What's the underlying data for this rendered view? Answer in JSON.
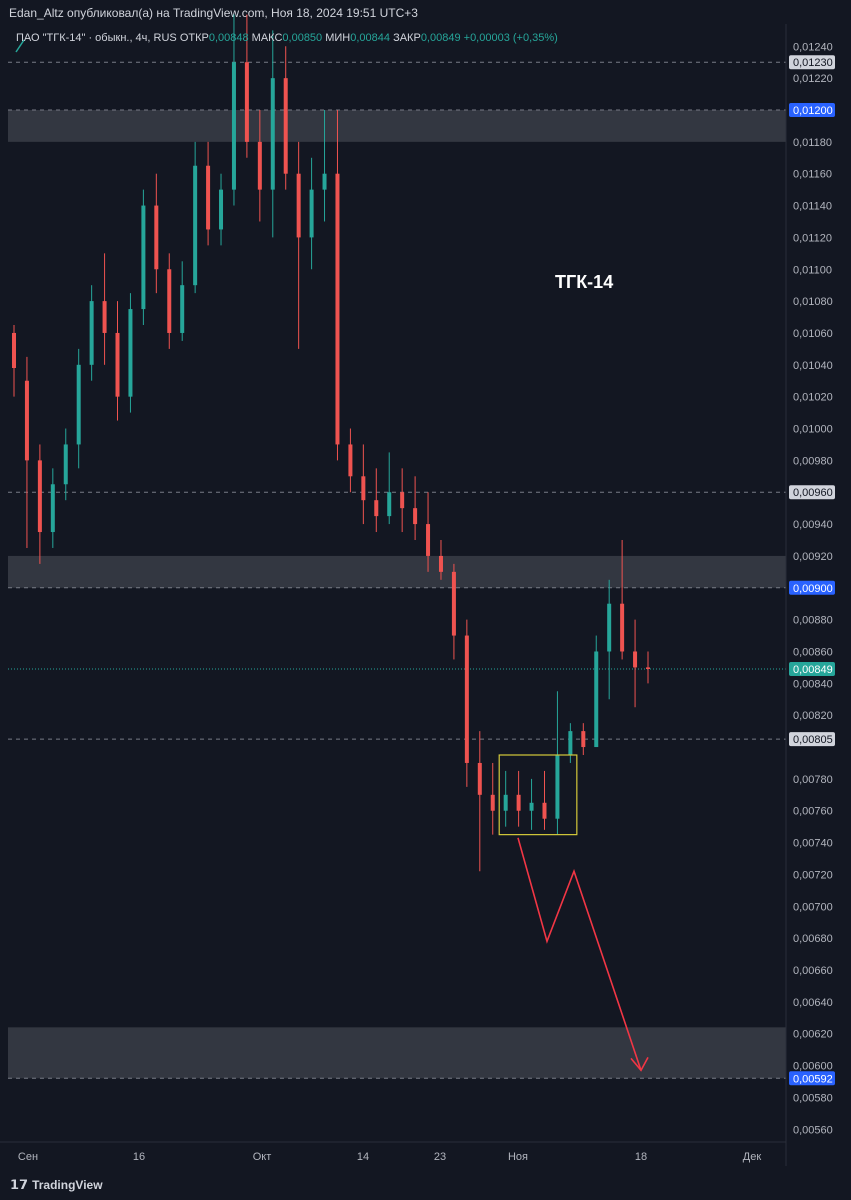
{
  "header": {
    "publish_line": "Edan_Altz опубликовал(а) на TradingView.com, Ноя 18, 2024 19:51 UTC+3"
  },
  "legend": {
    "symbol": "ПАО \"ТГК-14\" · обыкн., 4ч, RUS",
    "open_label": "ОТКР",
    "open_value": "0,00848",
    "high_label": "МАКС",
    "high_value": "0,00850",
    "low_label": "МИН",
    "low_value": "0,00844",
    "close_label": "ЗАКР",
    "close_value": "0,00849",
    "change": "+0,00003 (+0,35%)"
  },
  "footer": {
    "brand": "TradingView",
    "brand_icon": "tradingview-logo-icon"
  },
  "colors": {
    "background": "#131722",
    "up": "#26a69a",
    "down": "#ef5350",
    "zone": "#3a3d47",
    "box": "#d4c93a",
    "arrow": "#f23645",
    "badge_blue": "#2962ff"
  },
  "chart_data": {
    "type": "candlestick",
    "title": "ТГК-14",
    "ylim": [
      0.00552,
      0.01254
    ],
    "y_ticks": [
      "0,01240",
      "0,01220",
      "0,01180",
      "0,01160",
      "0,01140",
      "0,01120",
      "0,01100",
      "0,01080",
      "0,01060",
      "0,01040",
      "0,01020",
      "0,01000",
      "0,00980",
      "0,00940",
      "0,00920",
      "0,00880",
      "0,00860",
      "0,00840",
      "0,00820",
      "0,00780",
      "0,00760",
      "0,00740",
      "0,00720",
      "0,00700",
      "0,00680",
      "0,00660",
      "0,00640",
      "0,00620",
      "0,00600",
      "0,00580",
      "0,00560"
    ],
    "x_labels": [
      "Сен",
      "16",
      "Окт",
      "14",
      "23",
      "Ноя",
      "18",
      "Дек"
    ],
    "price_badges": [
      {
        "label": "0,01230",
        "value": 0.0123,
        "style": "gray"
      },
      {
        "label": "0,01200",
        "value": 0.012,
        "style": "blue"
      },
      {
        "label": "0,00960",
        "value": 0.0096,
        "style": "gray"
      },
      {
        "label": "0,00900",
        "value": 0.009,
        "style": "blue"
      },
      {
        "label": "0,00849",
        "value": 0.00849,
        "style": "green"
      },
      {
        "label": "0,00805",
        "value": 0.00805,
        "style": "gray"
      },
      {
        "label": "0,00592",
        "value": 0.00592,
        "style": "blue"
      }
    ],
    "zones": [
      {
        "from": 0.0118,
        "to": 0.012
      },
      {
        "from": 0.009,
        "to": 0.0092
      },
      {
        "from": 0.00592,
        "to": 0.00624
      }
    ],
    "consolidation_box": {
      "from": 0.00745,
      "to": 0.00795
    },
    "forecast_path": [
      0.00743,
      0.00678,
      0.00722,
      0.00597
    ],
    "candles": [
      {
        "o": 0.0106,
        "h": 0.01065,
        "c": 0.01038,
        "l": 0.0102
      },
      {
        "o": 0.0103,
        "h": 0.01045,
        "c": 0.0098,
        "l": 0.00925
      },
      {
        "o": 0.0098,
        "h": 0.0099,
        "c": 0.00935,
        "l": 0.00915
      },
      {
        "o": 0.00935,
        "h": 0.00975,
        "c": 0.00965,
        "l": 0.00925
      },
      {
        "o": 0.00965,
        "h": 0.01,
        "c": 0.0099,
        "l": 0.00955
      },
      {
        "o": 0.0099,
        "h": 0.0105,
        "c": 0.0104,
        "l": 0.00975
      },
      {
        "o": 0.0104,
        "h": 0.0109,
        "c": 0.0108,
        "l": 0.0103
      },
      {
        "o": 0.0108,
        "h": 0.0111,
        "c": 0.0106,
        "l": 0.0104
      },
      {
        "o": 0.0106,
        "h": 0.0108,
        "c": 0.0102,
        "l": 0.01005
      },
      {
        "o": 0.0102,
        "h": 0.01085,
        "c": 0.01075,
        "l": 0.0101
      },
      {
        "o": 0.01075,
        "h": 0.0115,
        "c": 0.0114,
        "l": 0.01065
      },
      {
        "o": 0.0114,
        "h": 0.0116,
        "c": 0.011,
        "l": 0.01085
      },
      {
        "o": 0.011,
        "h": 0.0111,
        "c": 0.0106,
        "l": 0.0105
      },
      {
        "o": 0.0106,
        "h": 0.01105,
        "c": 0.0109,
        "l": 0.01055
      },
      {
        "o": 0.0109,
        "h": 0.0118,
        "c": 0.01165,
        "l": 0.01085
      },
      {
        "o": 0.01165,
        "h": 0.0118,
        "c": 0.01125,
        "l": 0.01115
      },
      {
        "o": 0.01125,
        "h": 0.0116,
        "c": 0.0115,
        "l": 0.01115
      },
      {
        "o": 0.0115,
        "h": 0.0126,
        "c": 0.0123,
        "l": 0.0114
      },
      {
        "o": 0.0123,
        "h": 0.0126,
        "c": 0.0118,
        "l": 0.0117
      },
      {
        "o": 0.0118,
        "h": 0.012,
        "c": 0.0115,
        "l": 0.0113
      },
      {
        "o": 0.0115,
        "h": 0.0125,
        "c": 0.0122,
        "l": 0.0112
      },
      {
        "o": 0.0122,
        "h": 0.0124,
        "c": 0.0116,
        "l": 0.0115
      },
      {
        "o": 0.0116,
        "h": 0.0118,
        "c": 0.0112,
        "l": 0.0105
      },
      {
        "o": 0.0112,
        "h": 0.0117,
        "c": 0.0115,
        "l": 0.011
      },
      {
        "o": 0.0115,
        "h": 0.012,
        "c": 0.0116,
        "l": 0.0113
      },
      {
        "o": 0.0116,
        "h": 0.012,
        "c": 0.0099,
        "l": 0.0098
      },
      {
        "o": 0.0099,
        "h": 0.01,
        "c": 0.0097,
        "l": 0.0096
      },
      {
        "o": 0.0097,
        "h": 0.0099,
        "c": 0.00955,
        "l": 0.0094
      },
      {
        "o": 0.00955,
        "h": 0.00975,
        "c": 0.00945,
        "l": 0.00935
      },
      {
        "o": 0.00945,
        "h": 0.00985,
        "c": 0.0096,
        "l": 0.0094
      },
      {
        "o": 0.0096,
        "h": 0.00975,
        "c": 0.0095,
        "l": 0.00935
      },
      {
        "o": 0.0095,
        "h": 0.0097,
        "c": 0.0094,
        "l": 0.0093
      },
      {
        "o": 0.0094,
        "h": 0.0096,
        "c": 0.0092,
        "l": 0.0091
      },
      {
        "o": 0.0092,
        "h": 0.0093,
        "c": 0.0091,
        "l": 0.00905
      },
      {
        "o": 0.0091,
        "h": 0.00915,
        "c": 0.0087,
        "l": 0.00855
      },
      {
        "o": 0.0087,
        "h": 0.0088,
        "c": 0.0079,
        "l": 0.00775
      },
      {
        "o": 0.0079,
        "h": 0.0081,
        "c": 0.0077,
        "l": 0.00722
      },
      {
        "o": 0.0077,
        "h": 0.0079,
        "c": 0.0076,
        "l": 0.00745
      },
      {
        "o": 0.0076,
        "h": 0.00785,
        "c": 0.0077,
        "l": 0.0075
      },
      {
        "o": 0.0077,
        "h": 0.00785,
        "c": 0.0076,
        "l": 0.0075
      },
      {
        "o": 0.0076,
        "h": 0.0078,
        "c": 0.00765,
        "l": 0.00748
      },
      {
        "o": 0.00765,
        "h": 0.00785,
        "c": 0.00755,
        "l": 0.00748
      },
      {
        "o": 0.00755,
        "h": 0.00835,
        "c": 0.00795,
        "l": 0.00745
      },
      {
        "o": 0.00795,
        "h": 0.00815,
        "c": 0.0081,
        "l": 0.0079
      },
      {
        "o": 0.0081,
        "h": 0.00815,
        "c": 0.008,
        "l": 0.00795
      },
      {
        "o": 0.008,
        "h": 0.0087,
        "c": 0.0086,
        "l": 0.008
      },
      {
        "o": 0.0086,
        "h": 0.00905,
        "c": 0.0089,
        "l": 0.0083
      },
      {
        "o": 0.0089,
        "h": 0.0093,
        "c": 0.0086,
        "l": 0.00855
      },
      {
        "o": 0.0086,
        "h": 0.0088,
        "c": 0.0085,
        "l": 0.00825
      },
      {
        "o": 0.0085,
        "h": 0.0086,
        "c": 0.00849,
        "l": 0.0084
      }
    ]
  }
}
